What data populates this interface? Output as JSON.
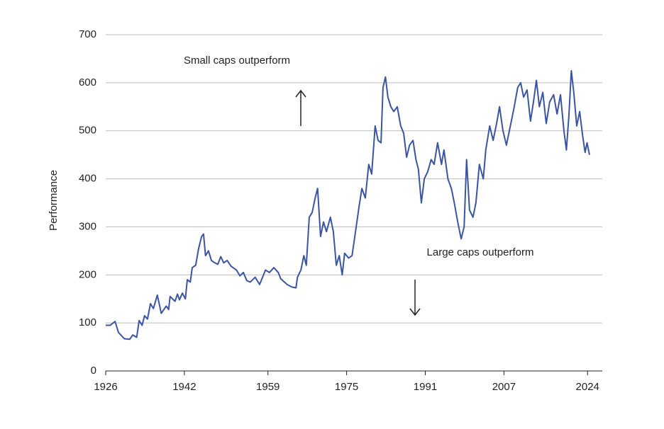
{
  "chart_data": {
    "type": "line",
    "y_label": "Performance",
    "annotations": [
      "Small caps outperform",
      "Large caps outperform"
    ],
    "xlim": [
      1926,
      2027
    ],
    "xticks": [
      1926,
      1942,
      1959,
      1975,
      1991,
      2007,
      2024
    ],
    "ylim": [
      0,
      700
    ],
    "yticks": [
      0,
      100,
      200,
      300,
      400,
      500,
      600,
      700
    ],
    "grid": true,
    "x": [
      1926.0,
      1926.9,
      1927.9,
      1928.6,
      1929.8,
      1930.9,
      1931.5,
      1932.3,
      1932.8,
      1933.4,
      1933.9,
      1934.5,
      1935.1,
      1935.7,
      1936.5,
      1937.3,
      1938.3,
      1938.8,
      1939.1,
      1940.1,
      1940.6,
      1941.0,
      1941.6,
      1942.2,
      1942.6,
      1943.2,
      1943.6,
      1944.3,
      1944.9,
      1945.5,
      1945.9,
      1946.3,
      1946.9,
      1947.5,
      1948.2,
      1948.8,
      1949.4,
      1950.0,
      1950.7,
      1951.5,
      1952.6,
      1953.3,
      1954.0,
      1954.7,
      1955.4,
      1956.4,
      1957.3,
      1958.5,
      1959.3,
      1960.2,
      1961.1,
      1961.6,
      1962.9,
      1963.8,
      1964.7,
      1965.0,
      1965.7,
      1966.3,
      1966.8,
      1967.4,
      1968.0,
      1968.6,
      1969.1,
      1969.7,
      1970.3,
      1970.9,
      1971.7,
      1972.3,
      1972.9,
      1973.5,
      1974.1,
      1974.6,
      1975.4,
      1976.1,
      1976.6,
      1977.5,
      1978.1,
      1978.8,
      1979.5,
      1980.1,
      1980.8,
      1981.4,
      1982.0,
      1982.4,
      1982.9,
      1983.4,
      1984.0,
      1984.6,
      1985.3,
      1986.0,
      1986.6,
      1987.2,
      1987.8,
      1988.5,
      1989.1,
      1989.6,
      1990.2,
      1990.8,
      1991.5,
      1992.2,
      1992.8,
      1993.5,
      1994.3,
      1994.8,
      1995.6,
      1996.3,
      1996.9,
      1997.6,
      1998.3,
      1998.9,
      1999.4,
      2000.0,
      2000.7,
      2001.3,
      2002.0,
      2002.8,
      2003.3,
      2004.1,
      2004.8,
      2005.5,
      2006.1,
      2006.8,
      2007.5,
      2008.3,
      2009.0,
      2009.8,
      2010.4,
      2011.0,
      2011.7,
      2012.4,
      2013.0,
      2013.6,
      2014.2,
      2014.9,
      2015.6,
      2016.3,
      2017.1,
      2017.8,
      2018.5,
      2019.2,
      2019.7,
      2020.2,
      2020.7,
      2021.2,
      2021.8,
      2022.4,
      2023.0,
      2023.5,
      2023.9,
      2024.4
    ],
    "series": [
      {
        "color": "#3b55a2",
        "values": [
          95,
          95,
          103,
          80,
          67,
          66,
          75,
          70,
          105,
          95,
          115,
          108,
          140,
          130,
          158,
          120,
          135,
          128,
          155,
          145,
          160,
          148,
          162,
          150,
          190,
          185,
          215,
          220,
          255,
          280,
          285,
          240,
          250,
          230,
          225,
          222,
          238,
          225,
          230,
          218,
          210,
          198,
          205,
          188,
          185,
          195,
          180,
          210,
          205,
          215,
          205,
          192,
          180,
          175,
          173,
          195,
          210,
          240,
          220,
          320,
          330,
          360,
          380,
          280,
          310,
          290,
          320,
          290,
          220,
          240,
          200,
          245,
          235,
          240,
          275,
          340,
          380,
          360,
          430,
          410,
          510,
          480,
          475,
          590,
          612,
          570,
          550,
          540,
          550,
          510,
          495,
          445,
          470,
          480,
          440,
          420,
          350,
          400,
          415,
          440,
          430,
          475,
          430,
          460,
          400,
          380,
          350,
          310,
          275,
          300,
          440,
          335,
          320,
          350,
          430,
          400,
          460,
          510,
          480,
          515,
          550,
          500,
          470,
          510,
          545,
          590,
          600,
          570,
          585,
          520,
          560,
          605,
          550,
          580,
          515,
          560,
          575,
          535,
          575,
          500,
          460,
          530,
          625,
          580,
          510,
          540,
          490,
          455,
          475,
          450
        ]
      }
    ]
  }
}
